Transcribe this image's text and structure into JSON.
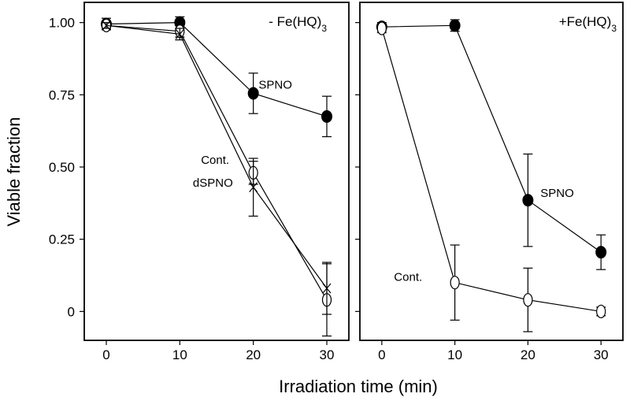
{
  "xlabel": "Irradiation time (min)",
  "ylabel": "Viable fraction",
  "chart_data": [
    {
      "type": "line",
      "title": "- Fe(HQ)",
      "title_subscript": "3",
      "xlim": [
        -3,
        33
      ],
      "ylim": [
        -0.1,
        1.07
      ],
      "xticks": [
        0,
        10,
        20,
        30
      ],
      "yticks": [
        0,
        0.25,
        0.5,
        0.75,
        1.0
      ],
      "ytick_labels": [
        "0",
        "0.25",
        "0.50",
        "0.75",
        "1.00"
      ],
      "series": [
        {
          "name": "SPNO",
          "marker": "filled-circle",
          "x": [
            0,
            10,
            20,
            30
          ],
          "y": [
            0.995,
            1.0,
            0.755,
            0.675
          ],
          "err": [
            0.02,
            0.02,
            0.07,
            0.07
          ]
        },
        {
          "name": "Cont.",
          "marker": "open-circle",
          "x": [
            0,
            10,
            20,
            30
          ],
          "y": [
            0.99,
            0.97,
            0.48,
            0.04
          ],
          "err": [
            0.015,
            0.02,
            0.04,
            0.125
          ]
        },
        {
          "name": "dSPNO",
          "marker": "cross",
          "x": [
            0,
            10,
            20,
            30
          ],
          "y": [
            0.99,
            0.96,
            0.43,
            0.08
          ],
          "err": [
            0.01,
            0.02,
            0.1,
            0.09
          ]
        }
      ],
      "annotations": [
        {
          "text": "SPNO",
          "x": 23,
          "y": 0.785
        },
        {
          "text": "Cont.",
          "x": 14.8,
          "y": 0.525
        },
        {
          "text": "dSPNO",
          "x": 14.5,
          "y": 0.445
        }
      ]
    },
    {
      "type": "line",
      "title": "+Fe(HQ)",
      "title_subscript": "3",
      "xlim": [
        -3,
        33
      ],
      "ylim": [
        -0.1,
        1.07
      ],
      "xticks": [
        0,
        10,
        20,
        30
      ],
      "yticks": [
        0,
        0.25,
        0.5,
        0.75,
        1.0
      ],
      "series": [
        {
          "name": "SPNO",
          "marker": "filled-circle",
          "x": [
            0,
            10,
            20,
            30
          ],
          "y": [
            0.985,
            0.99,
            0.385,
            0.205
          ],
          "err": [
            0.015,
            0.02,
            0.16,
            0.06
          ]
        },
        {
          "name": "Cont.",
          "marker": "open-circle",
          "x": [
            0,
            10,
            20,
            30
          ],
          "y": [
            0.98,
            0.1,
            0.04,
            0.0
          ],
          "err": [
            0.015,
            0.13,
            0.11,
            0.015
          ]
        }
      ],
      "annotations": [
        {
          "text": "SPNO",
          "x": 24,
          "y": 0.41
        },
        {
          "text": "Cont.",
          "x": 3.6,
          "y": 0.12
        }
      ]
    }
  ]
}
